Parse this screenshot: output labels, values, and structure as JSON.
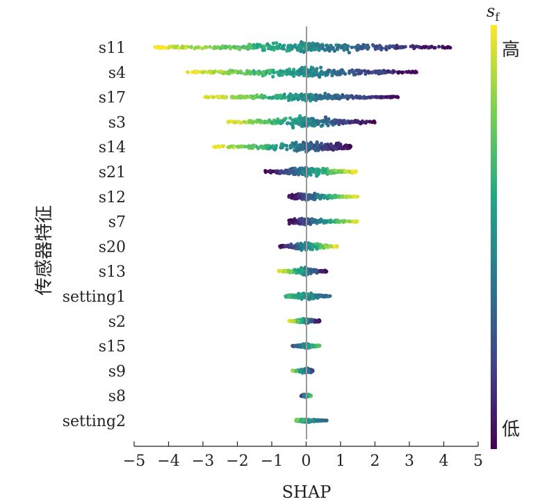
{
  "chart_data": {
    "type": "scatter",
    "subtype": "shap-beeswarm",
    "xlabel": "SHAP",
    "ylabel": "传感器特征",
    "xlim": [
      -5,
      5
    ],
    "xticks": [
      -5,
      -4,
      -3,
      -2,
      -1,
      0,
      1,
      2,
      3,
      4,
      5
    ],
    "xtick_labels": [
      "−5",
      "−4",
      "−3",
      "−2",
      "−1",
      "0",
      "1",
      "2",
      "3",
      "4",
      "5"
    ],
    "features": [
      {
        "name": "s11",
        "min": -4.4,
        "max": 4.2
      },
      {
        "name": "s4",
        "min": -3.5,
        "max": 3.3
      },
      {
        "name": "s17",
        "min": -3.0,
        "max": 2.7
      },
      {
        "name": "s3",
        "min": -2.3,
        "max": 2.0
      },
      {
        "name": "s14",
        "min": -2.7,
        "max": 1.3
      },
      {
        "name": "s21",
        "min": -1.2,
        "max": 1.5
      },
      {
        "name": "s12",
        "min": -0.5,
        "max": 1.5
      },
      {
        "name": "s7",
        "min": -0.5,
        "max": 1.5
      },
      {
        "name": "s20",
        "min": -0.8,
        "max": 0.9
      },
      {
        "name": "s13",
        "min": -0.8,
        "max": 0.6
      },
      {
        "name": "setting1",
        "min": -0.6,
        "max": 0.7
      },
      {
        "name": "s2",
        "min": -0.5,
        "max": 0.4
      },
      {
        "name": "s15",
        "min": -0.4,
        "max": 0.4
      },
      {
        "name": "s9",
        "min": -0.4,
        "max": 0.2
      },
      {
        "name": "s8",
        "min": -0.15,
        "max": 0.15
      },
      {
        "name": "setting2",
        "min": -0.3,
        "max": 0.6
      }
    ],
    "colorbar": {
      "title_main": "s",
      "title_sub": "f",
      "high_label": "高",
      "low_label": "低",
      "colors": [
        "#fde725",
        "#7ad151",
        "#22a884",
        "#2a788e",
        "#414487",
        "#440154"
      ]
    }
  }
}
